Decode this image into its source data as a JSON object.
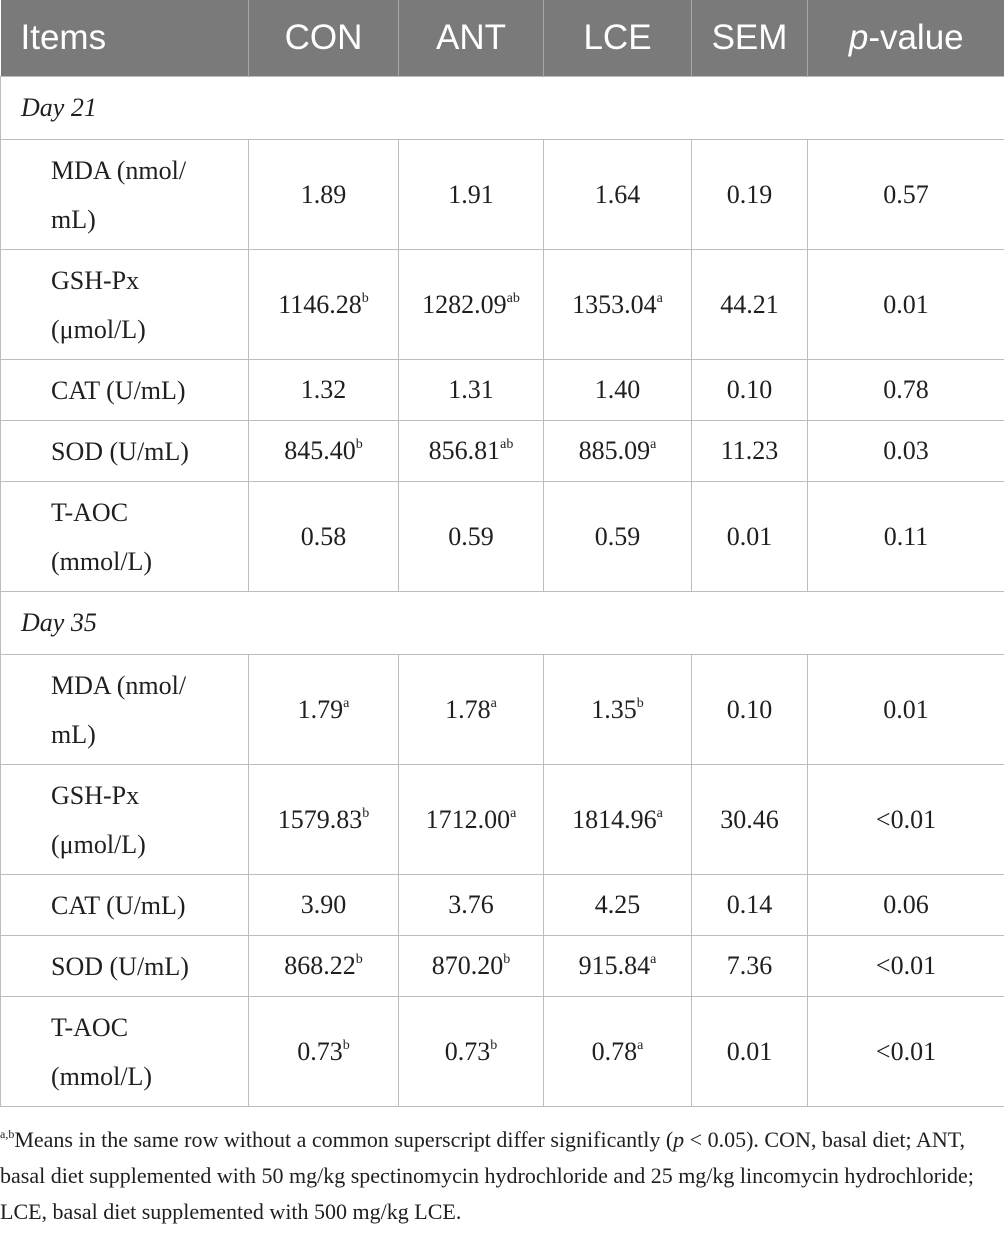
{
  "table": {
    "headers": [
      "Items",
      "CON",
      "ANT",
      "LCE",
      "SEM",
      "p-value"
    ],
    "sections": [
      {
        "label": "Day 21",
        "rows": [
          {
            "item": "MDA (nmol/mL)",
            "lines": [
              "MDA (nmol/",
              "mL)"
            ],
            "con": "1.89",
            "con_sup": "",
            "ant": "1.91",
            "ant_sup": "",
            "lce": "1.64",
            "lce_sup": "",
            "sem": "0.19",
            "p": "0.57"
          },
          {
            "item": "GSH-Px (μmol/L)",
            "lines": [
              "GSH-Px",
              "(μmol/L)"
            ],
            "con": "1146.28",
            "con_sup": "b",
            "ant": "1282.09",
            "ant_sup": "ab",
            "lce": "1353.04",
            "lce_sup": "a",
            "sem": "44.21",
            "p": "0.01"
          },
          {
            "item": "CAT (U/mL)",
            "lines": [
              "CAT (U/mL)"
            ],
            "con": "1.32",
            "con_sup": "",
            "ant": "1.31",
            "ant_sup": "",
            "lce": "1.40",
            "lce_sup": "",
            "sem": "0.10",
            "p": "0.78"
          },
          {
            "item": "SOD (U/mL)",
            "lines": [
              "SOD (U/mL)"
            ],
            "con": "845.40",
            "con_sup": "b",
            "ant": "856.81",
            "ant_sup": "ab",
            "lce": "885.09",
            "lce_sup": "a",
            "sem": "11.23",
            "p": "0.03"
          },
          {
            "item": "T-AOC (mmol/L)",
            "lines": [
              "T-AOC",
              "(mmol/L)"
            ],
            "con": "0.58",
            "con_sup": "",
            "ant": "0.59",
            "ant_sup": "",
            "lce": "0.59",
            "lce_sup": "",
            "sem": "0.01",
            "p": "0.11"
          }
        ]
      },
      {
        "label": "Day 35",
        "rows": [
          {
            "item": "MDA (nmol/mL)",
            "lines": [
              "MDA (nmol/",
              "mL)"
            ],
            "con": "1.79",
            "con_sup": "a",
            "ant": "1.78",
            "ant_sup": "a",
            "lce": "1.35",
            "lce_sup": "b",
            "sem": "0.10",
            "p": "0.01"
          },
          {
            "item": "GSH-Px (μmol/L)",
            "lines": [
              "GSH-Px",
              "(μmol/L)"
            ],
            "con": "1579.83",
            "con_sup": "b",
            "ant": "1712.00",
            "ant_sup": "a",
            "lce": "1814.96",
            "lce_sup": "a",
            "sem": "30.46",
            "p": "<0.01"
          },
          {
            "item": "CAT (U/mL)",
            "lines": [
              "CAT (U/mL)"
            ],
            "con": "3.90",
            "con_sup": "",
            "ant": "3.76",
            "ant_sup": "",
            "lce": "4.25",
            "lce_sup": "",
            "sem": "0.14",
            "p": "0.06"
          },
          {
            "item": "SOD (U/mL)",
            "lines": [
              "SOD (U/mL)"
            ],
            "con": "868.22",
            "con_sup": "b",
            "ant": "870.20",
            "ant_sup": "b",
            "lce": "915.84",
            "lce_sup": "a",
            "sem": "7.36",
            "p": "<0.01"
          },
          {
            "item": "T-AOC (mmol/L)",
            "lines": [
              "T-AOC",
              "(mmol/L)"
            ],
            "con": "0.73",
            "con_sup": "b",
            "ant": "0.73",
            "ant_sup": "b",
            "lce": "0.78",
            "lce_sup": "a",
            "sem": "0.01",
            "p": "<0.01"
          }
        ]
      }
    ]
  },
  "footnote": {
    "sup": "a,b",
    "text_before": "Means in the same row without a common superscript differ significantly (",
    "p_symbol": "p",
    "text_after": " < 0.05). CON, basal diet; ANT, basal diet supplemented with 50 mg/kg spectinomycin hydrochloride and 25 mg/kg lincomycin hydrochloride; LCE, basal diet supplemented with 500 mg/kg LCE."
  }
}
